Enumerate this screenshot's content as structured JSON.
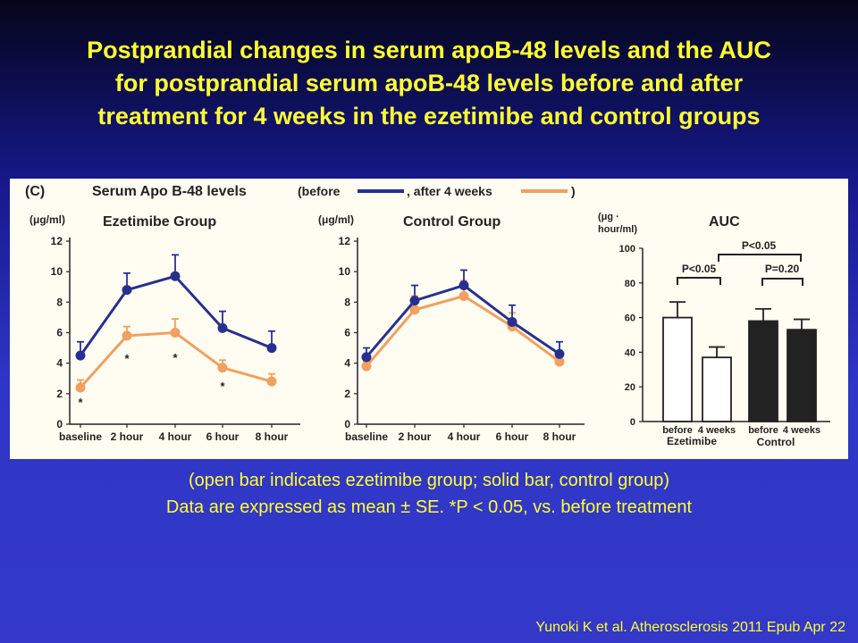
{
  "title_lines": [
    "Postprandial changes in serum apoB-48 levels and the AUC",
    "for postprandial serum apoB-48 levels before and after",
    "treatment for 4 weeks in the ezetimibe and control groups"
  ],
  "figure": {
    "panel_label": "(C)",
    "header_main": "Serum Apo B-48 levels",
    "header_before": "(before",
    "header_after": ", after 4 weeks",
    "header_close": ")"
  },
  "colors": {
    "before": "#27308f",
    "after": "#f0a060",
    "bar_open": "#ffffff",
    "bar_solid": "#222222"
  },
  "chart_data": [
    {
      "type": "line",
      "title": "Ezetimibe Group",
      "ylabel": "(μg/ml)",
      "ylim": [
        0,
        12
      ],
      "yticks": [
        "0",
        "2",
        "4",
        "6",
        "8",
        "10",
        "12"
      ],
      "categories": [
        "baseline",
        "2 hour",
        "4 hour",
        "6 hour",
        "8 hour"
      ],
      "series": [
        {
          "name": "before",
          "values": [
            4.5,
            8.8,
            9.7,
            6.3,
            5.0
          ],
          "errors": [
            0.9,
            1.1,
            1.4,
            1.1,
            1.1
          ]
        },
        {
          "name": "after 4 weeks",
          "values": [
            2.4,
            5.8,
            6.0,
            3.7,
            2.8
          ],
          "errors": [
            0.5,
            0.6,
            0.9,
            0.5,
            0.5
          ]
        }
      ],
      "annotations": [
        "*",
        "*",
        "*",
        "*"
      ]
    },
    {
      "type": "line",
      "title": "Control Group",
      "ylabel": "(μg/ml)",
      "ylim": [
        0,
        12
      ],
      "yticks": [
        "0",
        "2",
        "4",
        "6",
        "8",
        "10",
        "12"
      ],
      "categories": [
        "baseline",
        "2 hour",
        "4 hour",
        "6 hour",
        "8 hour"
      ],
      "series": [
        {
          "name": "before",
          "values": [
            4.4,
            8.1,
            9.1,
            6.7,
            4.6
          ],
          "errors": [
            0.6,
            1.0,
            1.0,
            1.1,
            0.8
          ]
        },
        {
          "name": "after 4 weeks",
          "values": [
            3.8,
            7.5,
            8.4,
            6.4,
            4.1
          ],
          "errors": [
            0.3,
            0.9,
            1.0,
            0.9,
            0.4
          ]
        }
      ]
    },
    {
      "type": "bar",
      "title": "AUC",
      "ylabel_lines": [
        "(μg ·",
        "hour/ml)"
      ],
      "ylim": [
        0,
        100
      ],
      "yticks": [
        "0",
        "20",
        "40",
        "60",
        "80",
        "100"
      ],
      "categories": [
        "before",
        "4 weeks",
        "before",
        "4 weeks"
      ],
      "groups": [
        "Ezetimibe",
        "Control"
      ],
      "values": [
        60,
        37,
        58,
        53
      ],
      "errors": [
        9,
        6,
        7,
        6
      ],
      "fills": [
        "open",
        "open",
        "solid",
        "solid"
      ],
      "annotations": [
        "P<0.05",
        "P=0.20",
        "P<0.05"
      ]
    }
  ],
  "caption_lines": [
    "(open bar indicates ezetimibe group; solid bar, control group)",
    "Data are expressed as mean ± SE. *P < 0.05, vs. before treatment"
  ],
  "citation": "Yunoki K et al. Atherosclerosis 2011 Epub Apr 22"
}
